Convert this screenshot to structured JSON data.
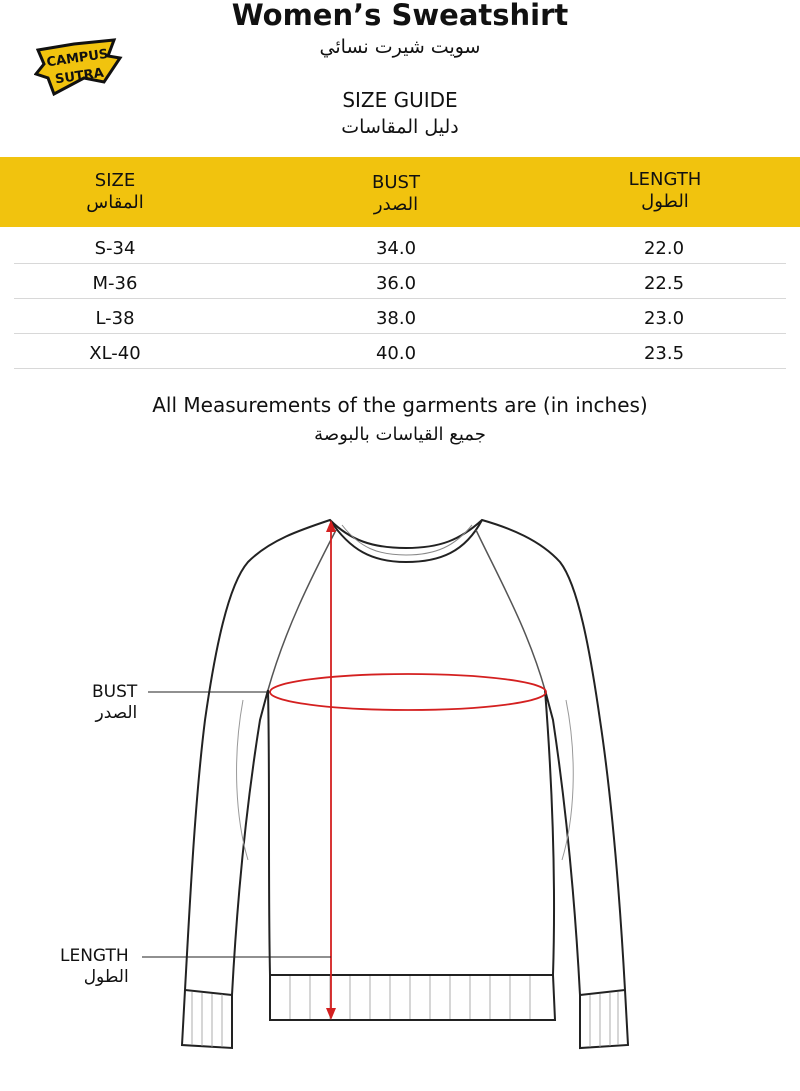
{
  "header": {
    "title": "Women’s Sweatshirt",
    "title_ar": "سويت شيرت نسائي",
    "subtitle": "SIZE GUIDE",
    "subtitle_ar": "دليل المقاسات",
    "logo_text": "CAMPUS SUTRA"
  },
  "table": {
    "columns": [
      {
        "en": "SIZE",
        "ar": "المقاس"
      },
      {
        "en": "BUST",
        "ar": "الصدر"
      },
      {
        "en": "LENGTH",
        "ar": "الطول"
      }
    ],
    "rows": [
      [
        "S-34",
        "34.0",
        "22.0"
      ],
      [
        "M-36",
        "36.0",
        "22.5"
      ],
      [
        "L-38",
        "38.0",
        "23.0"
      ],
      [
        "XL-40",
        "40.0",
        "23.5"
      ]
    ]
  },
  "note": {
    "en": "All Measurements of the garments are (in inches)",
    "ar": "جميع القياسات بالبوصة"
  },
  "diagram": {
    "bust": {
      "en": "BUST",
      "ar": "الصدر"
    },
    "length": {
      "en": "LENGTH",
      "ar": "الطول"
    }
  },
  "colors": {
    "band": "#f1c30e",
    "measure": "#d42020"
  }
}
